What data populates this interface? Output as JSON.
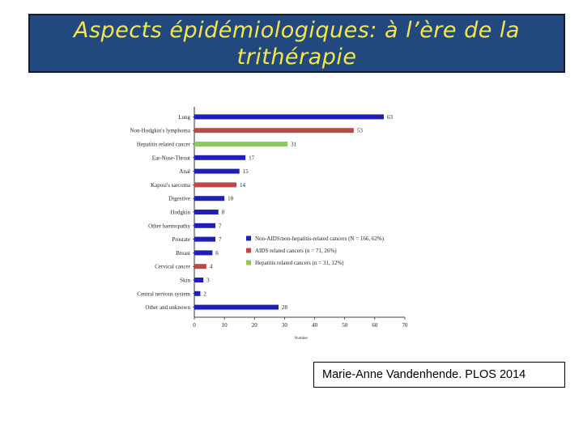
{
  "slide": {
    "title": "Aspects épidémiologiques: à l’ère de la trithérapie",
    "citation": "Marie-Anne Vandenhende. PLOS 2014"
  },
  "colors": {
    "title_bg": "#21497f",
    "title_text": "#f5e64a",
    "non_aids": "#1f1fb4",
    "aids": "#b84a4a",
    "hepatitis": "#8cc85a"
  },
  "chart_data": {
    "type": "bar",
    "orientation": "horizontal",
    "categories": [
      "Lung",
      "Non-Hodgkin's lymphoma",
      "Hepatitis related cancer",
      "Ear-Nose-Throat",
      "Anal",
      "Kaposi's sarcoma",
      "Digestive",
      "Hodgkin",
      "Other haemopathy",
      "Prostate",
      "Breast",
      "Cervical cancer",
      "Skin",
      "Central nervous system",
      "Other and unknown"
    ],
    "values": [
      63,
      53,
      31,
      17,
      15,
      14,
      10,
      8,
      7,
      7,
      6,
      4,
      3,
      2,
      28
    ],
    "groups": [
      "non_aids",
      "aids",
      "hepatitis",
      "non_aids",
      "non_aids",
      "aids",
      "non_aids",
      "non_aids",
      "non_aids",
      "non_aids",
      "non_aids",
      "aids",
      "non_aids",
      "non_aids",
      "non_aids"
    ],
    "xlim": [
      0,
      70
    ],
    "xticks": [
      0,
      10,
      20,
      30,
      40,
      50,
      60,
      70
    ],
    "xlabel": "Number",
    "ylabel": "",
    "title": "",
    "grid": false,
    "legend_position": "right",
    "legend": [
      {
        "key": "non_aids",
        "label": "Non-AIDS/non-hepatitis-related cancers (N = 166, 62%)"
      },
      {
        "key": "aids",
        "label": "AIDS related cancers (n = 71, 26%)"
      },
      {
        "key": "hepatitis",
        "label": "Hepatitis related cancers (n = 31, 12%)"
      }
    ]
  }
}
